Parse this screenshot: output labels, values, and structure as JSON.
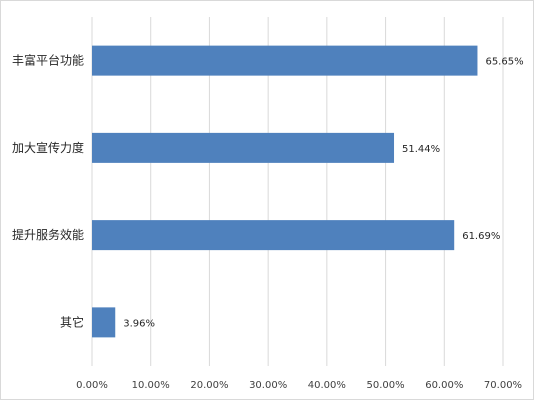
{
  "chart_data": {
    "type": "bar",
    "orientation": "horizontal",
    "categories": [
      "丰富平台功能",
      "加大宣传力度",
      "提升服务效能",
      "其它"
    ],
    "values": [
      65.65,
      51.44,
      61.69,
      3.96
    ],
    "value_labels": [
      "65.65%",
      "51.44%",
      "61.69%",
      "3.96%"
    ],
    "xlim": [
      0,
      70
    ],
    "x_ticks": [
      0,
      10,
      20,
      30,
      40,
      50,
      60,
      70
    ],
    "x_tick_labels": [
      "0.00%",
      "10.00%",
      "20.00%",
      "30.00%",
      "40.00%",
      "50.00%",
      "60.00%",
      "70.00%"
    ],
    "title": "",
    "xlabel": "",
    "ylabel": "",
    "grid": "vertical",
    "legend": "none",
    "bar_color": "#4f81bd",
    "grid_color": "#d9d9d9"
  }
}
